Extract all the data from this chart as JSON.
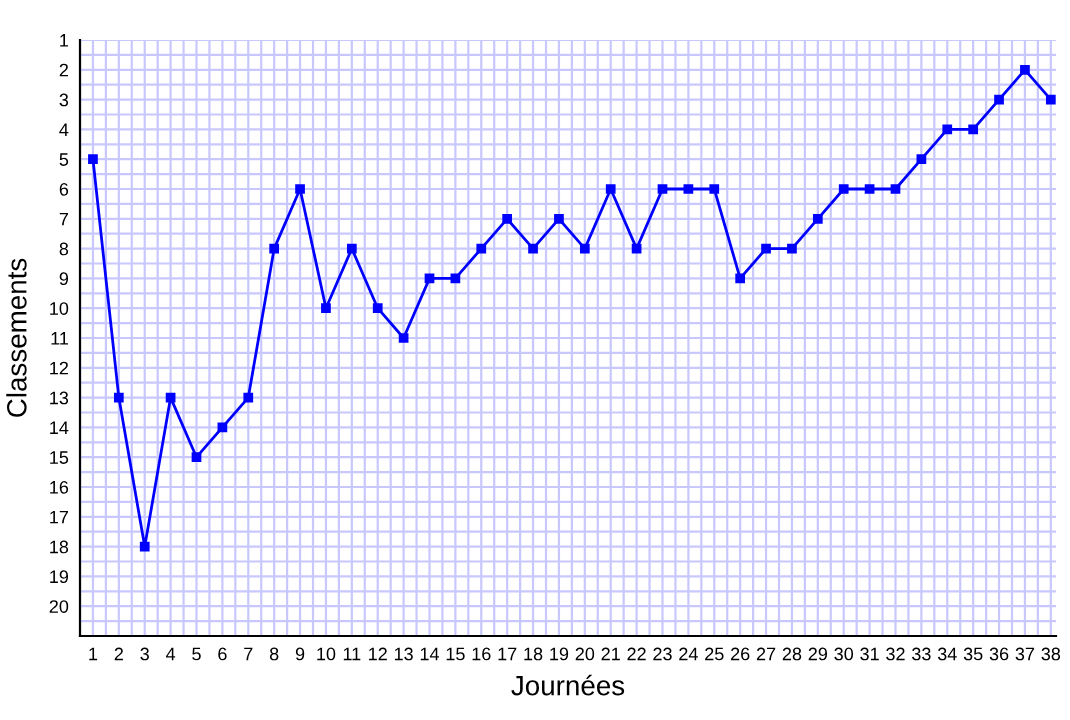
{
  "chart_data": {
    "type": "line",
    "xlabel": "Journées",
    "ylabel": "Classements",
    "x": [
      1,
      2,
      3,
      4,
      5,
      6,
      7,
      8,
      9,
      10,
      11,
      12,
      13,
      14,
      15,
      16,
      17,
      18,
      19,
      20,
      21,
      22,
      23,
      24,
      25,
      26,
      27,
      28,
      29,
      30,
      31,
      32,
      33,
      34,
      35,
      36,
      37,
      38
    ],
    "series": [
      {
        "color": "#0000ff",
        "values": [
          5,
          13,
          18,
          13,
          15,
          14,
          13,
          8,
          6,
          10,
          8,
          10,
          11,
          9,
          9,
          8,
          7,
          8,
          7,
          8,
          6,
          8,
          6,
          6,
          6,
          9,
          8,
          8,
          7,
          6,
          6,
          6,
          5,
          4,
          4,
          3,
          2,
          3
        ]
      }
    ],
    "xlim": [
      0.5,
      38.2
    ],
    "ylim": [
      21,
      1
    ],
    "xticks": [
      1,
      2,
      3,
      4,
      5,
      6,
      7,
      8,
      9,
      10,
      11,
      12,
      13,
      14,
      15,
      16,
      17,
      18,
      19,
      20,
      21,
      22,
      23,
      24,
      25,
      26,
      27,
      28,
      29,
      30,
      31,
      32,
      33,
      34,
      35,
      36,
      37,
      38
    ],
    "yticks": [
      1,
      2,
      3,
      4,
      5,
      6,
      7,
      8,
      9,
      10,
      11,
      12,
      13,
      14,
      15,
      16,
      17,
      18,
      19,
      20
    ],
    "grid": true,
    "marker": "square",
    "line_style": "solid"
  }
}
